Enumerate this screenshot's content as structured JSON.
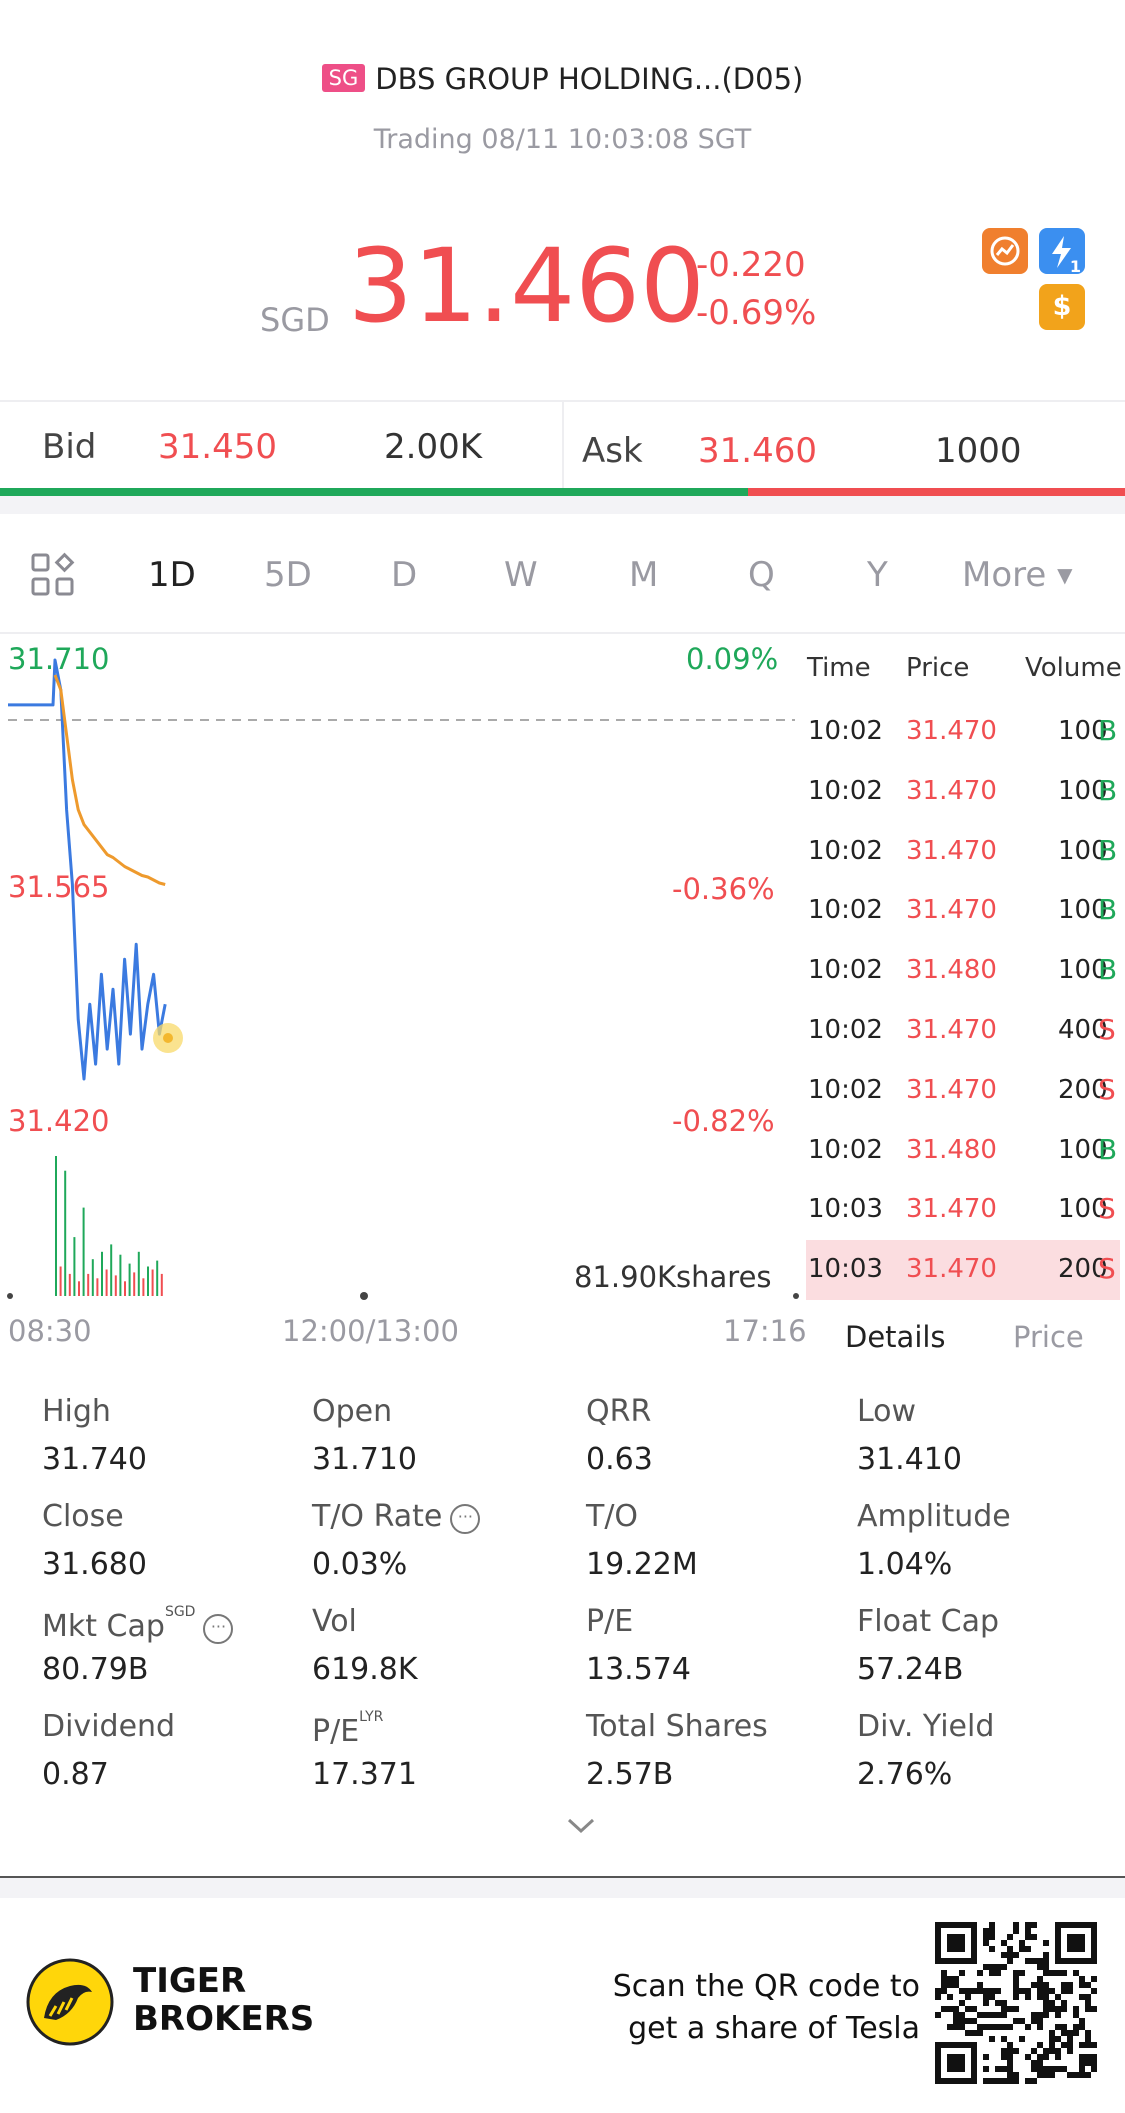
{
  "header": {
    "market_badge": "SG",
    "stock_name": "DBS GROUP HOLDING...(D05)",
    "status": "Trading 08/11 10:03:08 SGT"
  },
  "quote": {
    "currency": "SGD",
    "price": "31.460",
    "change": "-0.220",
    "change_pct": "-0.69%",
    "colors": {
      "down": "#f04e51",
      "up": "#1fa85a"
    }
  },
  "quick_icons": [
    "chart-swap-icon",
    "flash-trade-icon",
    "dollar-icon"
  ],
  "quick_icon_badge": "1",
  "bidask": {
    "bid_label": "Bid",
    "bid_price": "31.450",
    "bid_size": "2.00K",
    "ask_label": "Ask",
    "ask_price": "31.460",
    "ask_size": "1000",
    "bid_ratio": 0.665
  },
  "period_tabs": [
    "1D",
    "5D",
    "D",
    "W",
    "M",
    "Q",
    "Y",
    "More"
  ],
  "active_tab": "1D",
  "chart": {
    "high_label": "31.710",
    "mid_label": "31.565",
    "low_label": "31.420",
    "high_pct": "0.09%",
    "mid_pct": "-0.36%",
    "low_pct": "-0.82%",
    "volume_label": "81.90Kshares",
    "time_start": "08:30",
    "time_mid": "12:00/13:00",
    "time_end": "17:16"
  },
  "chart_data": {
    "type": "line",
    "title": "",
    "ylim": [
      31.42,
      31.71
    ],
    "ref_price": 31.68,
    "series": [
      {
        "name": "",
        "color": "#3b7ae0",
        "values": [
          31.68,
          31.68,
          31.68,
          31.68,
          31.71,
          31.69,
          31.61,
          31.56,
          31.47,
          31.43,
          31.48,
          31.44,
          31.5,
          31.45,
          31.49,
          31.44,
          31.51,
          31.46,
          31.52,
          31.45,
          31.48,
          31.5,
          31.46,
          31.48
        ]
      },
      {
        "name": "",
        "color": "#ee9a2d",
        "values": [
          null,
          null,
          null,
          null,
          31.7,
          31.69,
          31.66,
          31.63,
          31.61,
          31.6,
          31.595,
          31.59,
          31.585,
          31.58,
          31.578,
          31.575,
          31.572,
          31.57,
          31.568,
          31.566,
          31.565,
          31.563,
          31.561,
          31.56
        ]
      }
    ],
    "volume": [
      95,
      20,
      85,
      15,
      40,
      10,
      60,
      15,
      25,
      12,
      30,
      18,
      35,
      14,
      28,
      10,
      22,
      16,
      30,
      12,
      20,
      18,
      24,
      15
    ]
  },
  "trades": {
    "headers": [
      "Time",
      "Price",
      "Volume"
    ],
    "rows": [
      {
        "time": "10:02",
        "price": "31.470",
        "vol": "100",
        "side": "B"
      },
      {
        "time": "10:02",
        "price": "31.470",
        "vol": "100",
        "side": "B"
      },
      {
        "time": "10:02",
        "price": "31.470",
        "vol": "100",
        "side": "B"
      },
      {
        "time": "10:02",
        "price": "31.470",
        "vol": "100",
        "side": "B"
      },
      {
        "time": "10:02",
        "price": "31.480",
        "vol": "100",
        "side": "B"
      },
      {
        "time": "10:02",
        "price": "31.470",
        "vol": "400",
        "side": "S"
      },
      {
        "time": "10:02",
        "price": "31.470",
        "vol": "200",
        "side": "S"
      },
      {
        "time": "10:02",
        "price": "31.480",
        "vol": "100",
        "side": "B"
      },
      {
        "time": "10:03",
        "price": "31.470",
        "vol": "100",
        "side": "S"
      },
      {
        "time": "10:03",
        "price": "31.470",
        "vol": "200",
        "side": "S"
      }
    ],
    "tab_details": "Details",
    "tab_price": "Price"
  },
  "stats": [
    {
      "label": "High",
      "value": "31.740"
    },
    {
      "label": "Open",
      "value": "31.710"
    },
    {
      "label": "QRR",
      "value": "0.63"
    },
    {
      "label": "Low",
      "value": "31.410"
    },
    {
      "label": "Close",
      "value": "31.680"
    },
    {
      "label": "T/O Rate",
      "value": "0.03%"
    },
    {
      "label": "T/O",
      "value": "19.22M"
    },
    {
      "label": "Amplitude",
      "value": "1.04%"
    },
    {
      "label": "Mkt Cap",
      "value": "80.79B",
      "sup": "SGD"
    },
    {
      "label": "Vol",
      "value": "619.8K"
    },
    {
      "label": "P/E",
      "value": "13.574"
    },
    {
      "label": "Float Cap",
      "value": "57.24B"
    },
    {
      "label": "Dividend",
      "value": "0.87"
    },
    {
      "label": "P/E",
      "value": "17.371",
      "sup": "LYR"
    },
    {
      "label": "Total Shares",
      "value": "2.57B"
    },
    {
      "label": "Div. Yield",
      "value": "2.76%"
    }
  ],
  "footer": {
    "brand_line1": "TIGER",
    "brand_line2": "BROKERS",
    "promo_line1": "Scan the QR code to",
    "promo_line2": "get a share of Tesla"
  }
}
